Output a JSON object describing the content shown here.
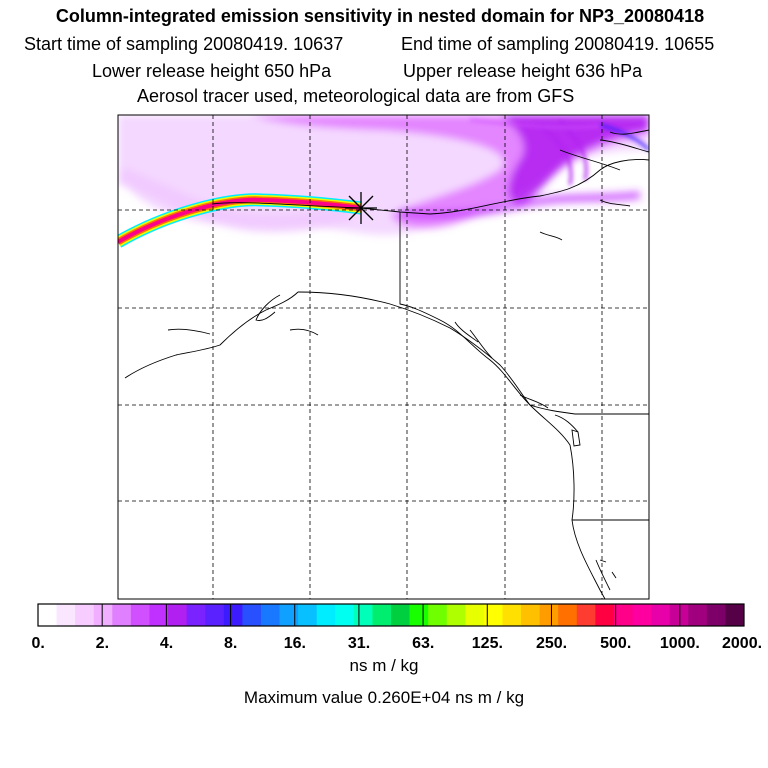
{
  "header": {
    "title": "Column-integrated emission sensitivity in nested domain for NP3_20080418",
    "start_label": "Start time of sampling 20080419. 10637",
    "end_label": "End time of sampling 20080419. 10655",
    "lower_label": "Lower release height  650 hPa",
    "upper_label": "Upper release height  636 hPa",
    "source_label": "Aerosol tracer used, meteorological data are from GFS"
  },
  "map": {
    "release_marker": "x-cross",
    "colors": {
      "plume_light": "#f0c8ff",
      "plume_mid": "#e070ff",
      "plume_dark": "#b020f0",
      "coast": "#000000",
      "grid": "#000000"
    }
  },
  "colorbar": {
    "segments": [
      "#ffffff",
      "#fbe6ff",
      "#f7ccff",
      "#f0b0ff",
      "#e080ff",
      "#d050ff",
      "#c030ff",
      "#b020f0",
      "#7a22ff",
      "#5a22ff",
      "#3c1cff",
      "#2850ff",
      "#1878ff",
      "#10a0ff",
      "#08c0ff",
      "#00ecff",
      "#00fff0",
      "#00ffb8",
      "#00ee70",
      "#00d040",
      "#18ff00",
      "#70ff00",
      "#b0ff00",
      "#e8ff00",
      "#ffff00",
      "#ffe000",
      "#ffc000",
      "#ff9c00",
      "#ff7000",
      "#ff3c30",
      "#ff0040",
      "#ff0088",
      "#ff00a0",
      "#e800a8",
      "#c80098",
      "#a0007e",
      "#7c0068",
      "#560048"
    ],
    "tick_labels": [
      "0.",
      "2.",
      "4.",
      "8.",
      "16.",
      "31.",
      "63.",
      "125.",
      "250.",
      "500.",
      "1000.",
      "2000."
    ],
    "units": "ns m / kg",
    "max_value": "Maximum value  0.260E+04 ns m / kg"
  }
}
